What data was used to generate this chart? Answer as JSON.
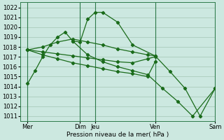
{
  "xlabel": "Pression niveau de la mer( hPa )",
  "bg_color": "#cce8e0",
  "grid_color": "#aaccbb",
  "line_color": "#1a6b1a",
  "ylim": [
    1010.5,
    1022.5
  ],
  "yticks": [
    1011,
    1012,
    1013,
    1014,
    1015,
    1016,
    1017,
    1018,
    1019,
    1020,
    1021,
    1022
  ],
  "xlim": [
    0,
    13
  ],
  "xtick_positions": [
    0.5,
    4.0,
    5.0,
    9.0,
    13.0
  ],
  "xtick_labels": [
    "Mer",
    "Dim",
    "Jeu",
    "Ven",
    "Sam"
  ],
  "vline_positions": [
    0.5,
    4.0,
    5.0,
    9.0,
    13.0
  ],
  "lines": [
    {
      "x": [
        0.5,
        1.0,
        1.5,
        2.0,
        2.5,
        3.0,
        3.5,
        4.0,
        4.5,
        5.0,
        5.5,
        6.5,
        7.5,
        9.0,
        10.0,
        11.0,
        12.0,
        13.0
      ],
      "y": [
        1014.3,
        1015.6,
        1017.0,
        1018.2,
        1019.0,
        1019.5,
        1018.6,
        1018.5,
        1020.8,
        1021.5,
        1021.5,
        1020.5,
        1018.2,
        1017.1,
        1015.5,
        1013.8,
        1011.0,
        1013.8
      ]
    },
    {
      "x": [
        0.5,
        1.5,
        2.5,
        3.5,
        4.5,
        5.5,
        6.5,
        7.5,
        8.5,
        9.0
      ],
      "y": [
        1017.7,
        1018.0,
        1018.5,
        1018.8,
        1018.5,
        1018.2,
        1017.8,
        1017.5,
        1017.2,
        1017.1
      ]
    },
    {
      "x": [
        0.5,
        1.5,
        2.5,
        3.5,
        4.5,
        5.5,
        6.5,
        7.5,
        8.5,
        9.0
      ],
      "y": [
        1017.7,
        1017.5,
        1017.3,
        1017.1,
        1016.9,
        1016.7,
        1016.5,
        1016.4,
        1016.8,
        1017.0
      ]
    },
    {
      "x": [
        0.5,
        1.5,
        2.5,
        3.5,
        4.5,
        5.5,
        6.5,
        7.5,
        8.5,
        9.0
      ],
      "y": [
        1017.7,
        1017.2,
        1016.8,
        1016.4,
        1016.1,
        1015.8,
        1015.5,
        1015.3,
        1015.0,
        1016.5
      ]
    },
    {
      "x": [
        3.5,
        4.5,
        5.5,
        6.5,
        7.5,
        8.5,
        9.5,
        10.5,
        11.5,
        13.0
      ],
      "y": [
        1018.6,
        1017.2,
        1016.5,
        1016.0,
        1015.6,
        1015.2,
        1013.8,
        1012.5,
        1011.0,
        1013.8
      ]
    }
  ]
}
